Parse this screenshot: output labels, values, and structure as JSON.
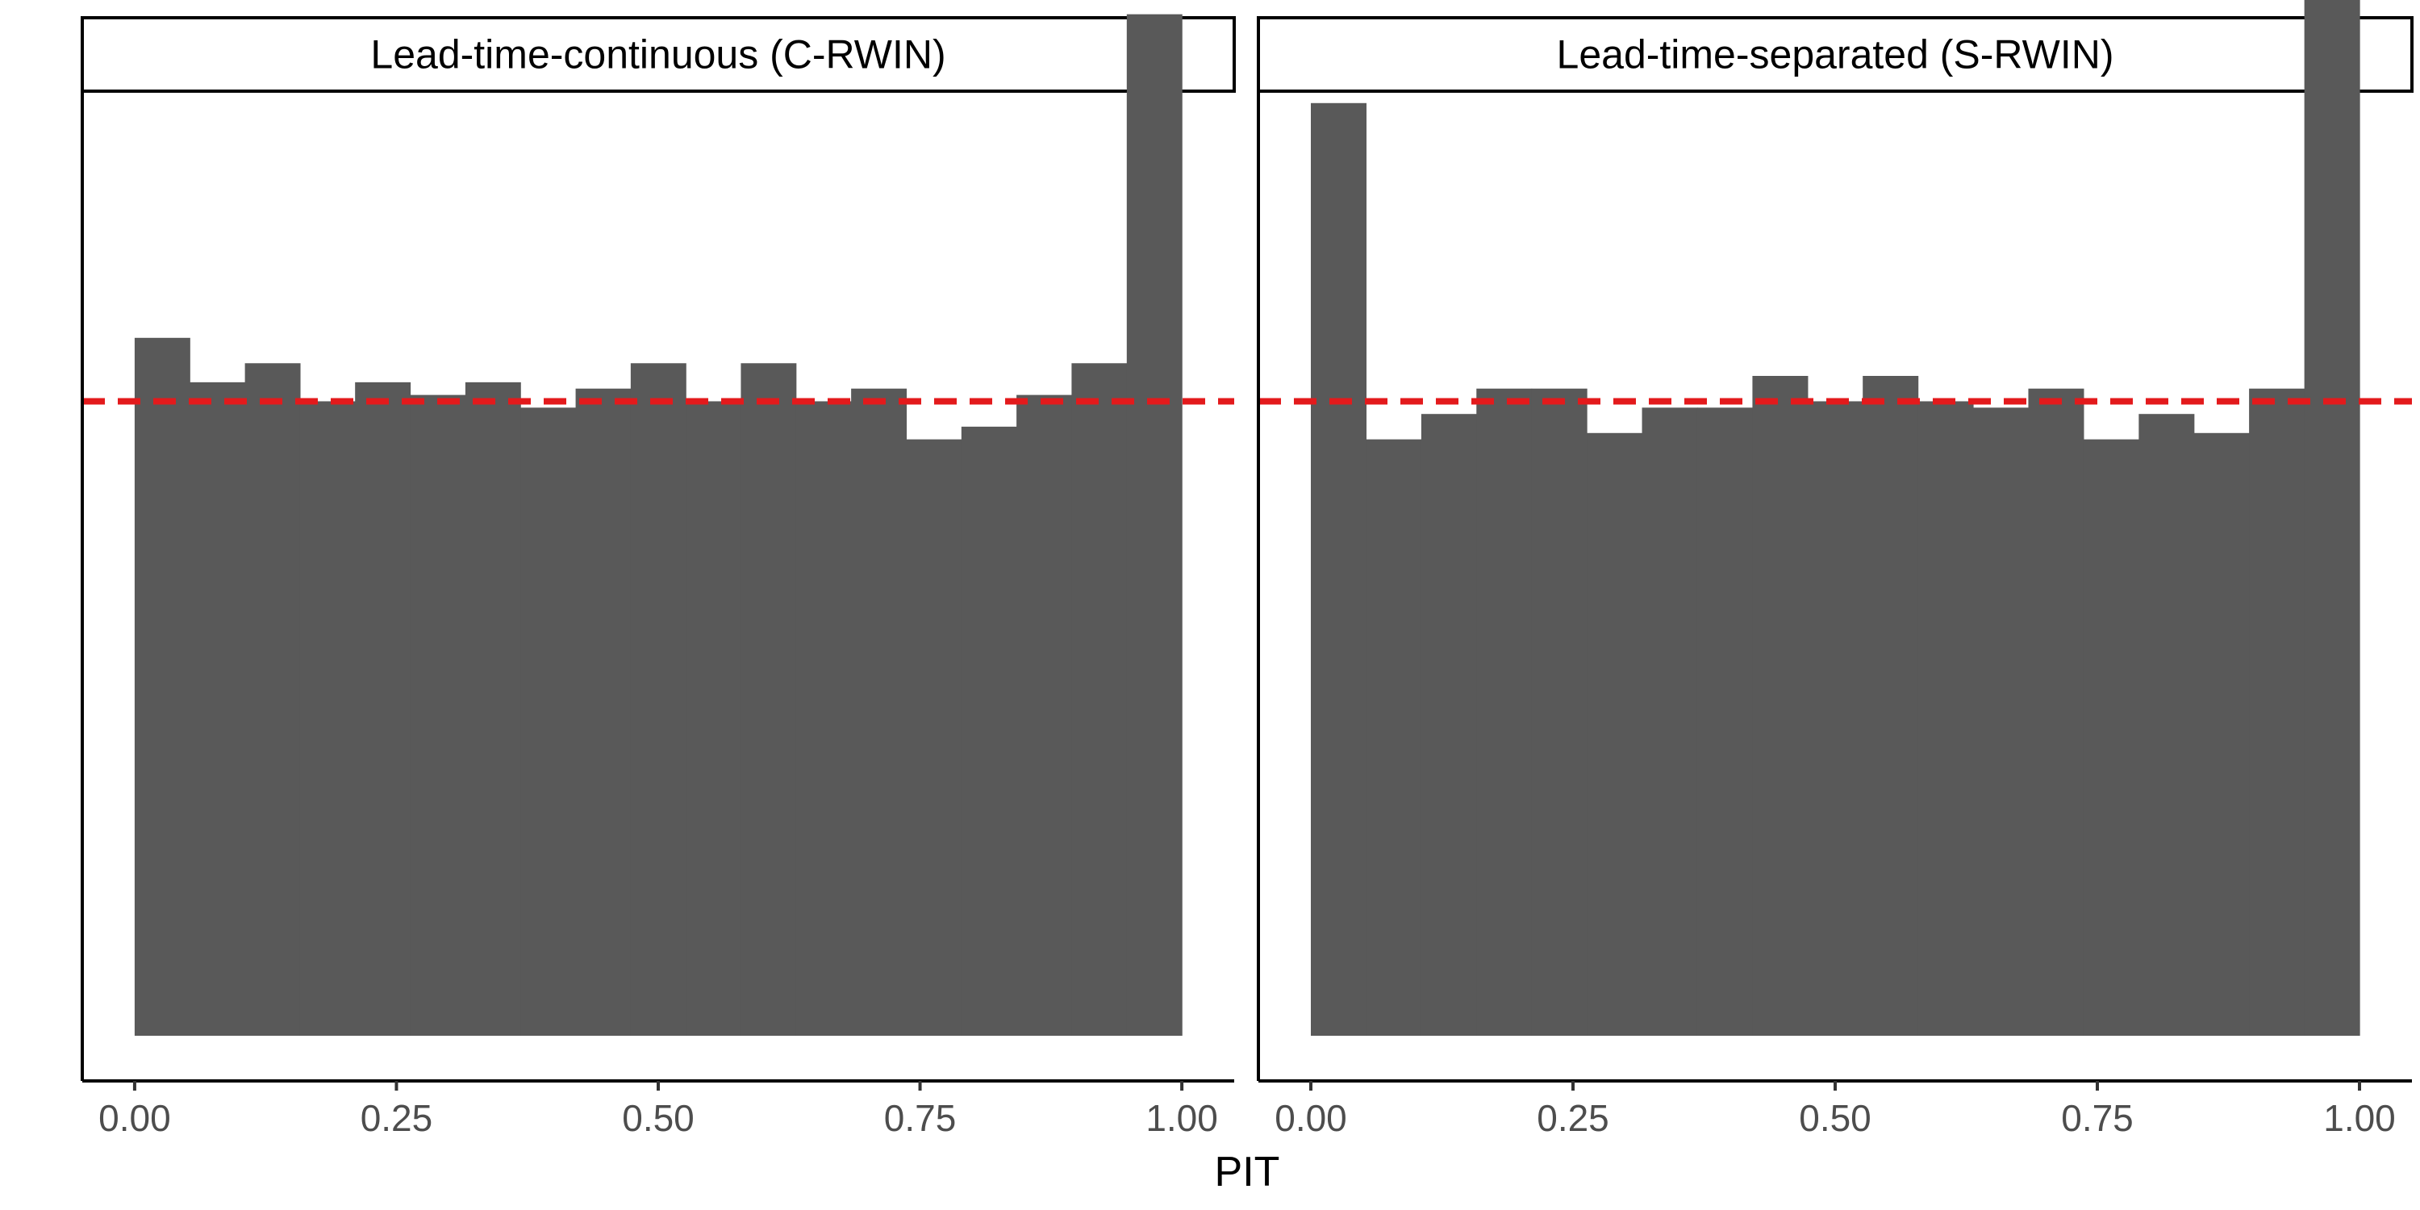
{
  "chart_data": {
    "type": "bar",
    "subtype": "faceted-histogram",
    "xlabel": "PIT",
    "ylabel": "",
    "xlim": [
      -0.05,
      1.05
    ],
    "ylim": [
      0,
      1.56
    ],
    "x_ticks": [
      "0.00",
      "0.25",
      "0.50",
      "0.75",
      "1.00"
    ],
    "y_axis_labels_shown": false,
    "bin_width": 0.05263,
    "reference_line": {
      "y": 1.0,
      "style": "dashed",
      "color": "#e31a1c"
    },
    "bar_color": "#595959",
    "grid": false,
    "panels": [
      {
        "title": "Lead-time-continuous (C-RWIN)",
        "bin_starts": [
          0.0,
          0.0526,
          0.1053,
          0.1579,
          0.2105,
          0.2632,
          0.3158,
          0.3684,
          0.4211,
          0.4737,
          0.5263,
          0.5789,
          0.6316,
          0.6842,
          0.7368,
          0.7895,
          0.8421,
          0.8947,
          0.9474
        ],
        "values": [
          1.1,
          1.03,
          1.06,
          1.0,
          1.03,
          1.01,
          1.03,
          0.99,
          1.02,
          1.06,
          1.0,
          1.06,
          1.0,
          1.02,
          0.94,
          0.96,
          1.01,
          1.06,
          1.61
        ]
      },
      {
        "title": "Lead-time-separated (S-RWIN)",
        "bin_starts": [
          0.0,
          0.0526,
          0.1053,
          0.1579,
          0.2105,
          0.2632,
          0.3158,
          0.3684,
          0.4211,
          0.4737,
          0.5263,
          0.5789,
          0.6316,
          0.6842,
          0.7368,
          0.7895,
          0.8421,
          0.8947,
          0.9474
        ],
        "values": [
          1.47,
          0.94,
          0.98,
          1.02,
          1.02,
          0.95,
          0.99,
          0.99,
          1.04,
          1.0,
          1.04,
          1.0,
          0.99,
          1.02,
          0.94,
          0.98,
          0.95,
          1.02,
          1.82
        ]
      }
    ]
  }
}
